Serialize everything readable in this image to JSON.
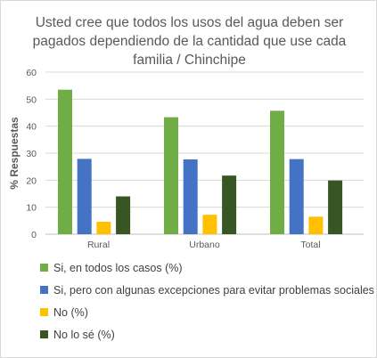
{
  "chart_data": {
    "type": "bar",
    "title": "Usted cree que todos los usos del agua deben ser pagados dependiendo de la cantidad que use cada familia / Chinchipe",
    "ylabel": "% Respuestas",
    "xlabel": "",
    "ylim": [
      0,
      60
    ],
    "yticks": [
      0,
      10,
      20,
      30,
      40,
      50,
      60
    ],
    "categories": [
      "Rural",
      "Urbano",
      "Total"
    ],
    "grid": true,
    "legend_position": "bottom",
    "series": [
      {
        "name": "Si, en todos los casos (%)",
        "color": "#70ad47",
        "values": [
          53.5,
          43.3,
          45.7
        ]
      },
      {
        "name": "Si, pero con algunas excepciones para evitar problemas sociales (%)",
        "color": "#4472c4",
        "values": [
          27.9,
          27.7,
          27.8
        ]
      },
      {
        "name": "No (%)",
        "color": "#ffc000",
        "values": [
          4.6,
          7.2,
          6.5
        ]
      },
      {
        "name": "No lo sé (%)",
        "color": "#375623",
        "values": [
          14.0,
          21.7,
          19.9
        ]
      }
    ]
  }
}
